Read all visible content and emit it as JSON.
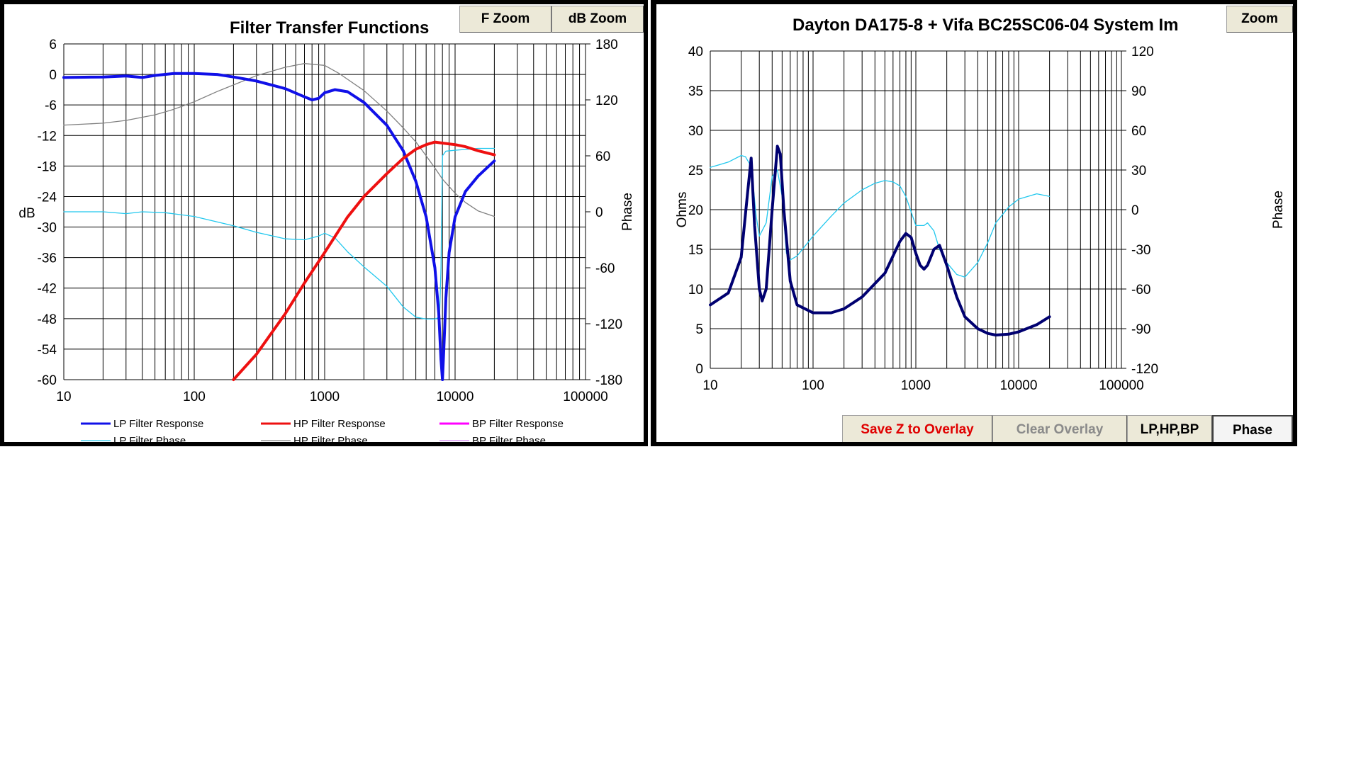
{
  "left_panel": {
    "title": "Filter Transfer Functions",
    "buttons": {
      "f_zoom": "F Zoom",
      "db_zoom": "dB Zoom"
    }
  },
  "right_panel": {
    "title": "Dayton DA175-8 + Vifa BC25SC06-04     System Im",
    "buttons": {
      "zoom": "Zoom",
      "save_overlay": "Save Z to Overlay",
      "clear_overlay": "Clear Overlay",
      "lphpbp": "LP,HP,BP",
      "phase": "Phase"
    }
  },
  "colors": {
    "lp_response": "#1010e8",
    "hp_response": "#ee1010",
    "bp_response": "#ff00ff",
    "lp_phase": "#22c8ee",
    "hp_phase": "#808080",
    "bp_phase": "#d080f0",
    "impedance": "#000070",
    "impedance_phase": "#22c8ee",
    "grid": "#000000"
  },
  "chart_data": [
    {
      "type": "line",
      "title": "Filter Transfer Functions",
      "x_scale": "log",
      "xlim": [
        10,
        100000
      ],
      "x_ticks": [
        "10",
        "100",
        "1000",
        "10000",
        "100000"
      ],
      "ylabel": "dB",
      "ylim": [
        -60,
        6
      ],
      "y_ticks": [
        "6",
        "0",
        "-6",
        "-12",
        "-18",
        "-24",
        "-30",
        "-36",
        "-42",
        "-48",
        "-54",
        "-60"
      ],
      "y2label": "Phase",
      "y2lim": [
        -180,
        180
      ],
      "y2_ticks": [
        "180",
        "120",
        "60",
        "0",
        "-60",
        "-120",
        "-180"
      ],
      "grid": true,
      "legend_placement": "bottom",
      "legend": [
        {
          "name": "LP Filter Response",
          "color_key": "lp_response",
          "width": 3
        },
        {
          "name": "HP Filter Response",
          "color_key": "hp_response",
          "width": 3
        },
        {
          "name": "BP Filter Response",
          "color_key": "bp_response",
          "width": 3
        },
        {
          "name": "LP Filter Phase",
          "color_key": "lp_phase",
          "width": 1.3
        },
        {
          "name": "HP Filter Phase",
          "color_key": "hp_phase",
          "width": 1.3
        },
        {
          "name": "BP Filter Phase",
          "color_key": "bp_phase",
          "width": 1.3
        }
      ],
      "series": [
        {
          "name": "LP Filter Response",
          "axis": "left",
          "color_key": "lp_response",
          "width": 4,
          "x": [
            10,
            20,
            30,
            40,
            50,
            70,
            100,
            150,
            200,
            300,
            500,
            700,
            800,
            900,
            1000,
            1200,
            1500,
            2000,
            3000,
            4000,
            5000,
            6000,
            7000,
            7500,
            7800,
            8000,
            8200,
            8500,
            9000,
            10000,
            12000,
            15000,
            20000
          ],
          "y": [
            -0.6,
            -0.5,
            -0.3,
            -0.6,
            -0.2,
            0.2,
            0.2,
            0,
            -0.5,
            -1.3,
            -2.8,
            -4.4,
            -5,
            -4.7,
            -3.6,
            -3,
            -3.4,
            -5.5,
            -10,
            -15,
            -21,
            -28,
            -38,
            -47,
            -56,
            -60,
            -54,
            -44,
            -35,
            -28,
            -23,
            -20,
            -17
          ]
        },
        {
          "name": "HP Filter Response",
          "axis": "left",
          "color_key": "hp_response",
          "width": 4,
          "x": [
            200,
            300,
            500,
            700,
            1000,
            1500,
            2000,
            3000,
            4000,
            5000,
            6000,
            7000,
            8000,
            10000,
            12000,
            15000,
            20000
          ],
          "y": [
            -60,
            -55,
            -47,
            -41,
            -35,
            -28,
            -24,
            -19.5,
            -16.5,
            -14.7,
            -13.8,
            -13.3,
            -13.5,
            -13.8,
            -14.2,
            -15,
            -15.8
          ]
        },
        {
          "name": "LP Filter Phase",
          "axis": "right",
          "color_key": "lp_phase",
          "width": 1.3,
          "x": [
            10,
            20,
            30,
            40,
            60,
            100,
            200,
            300,
            500,
            700,
            900,
            1000,
            1200,
            1500,
            2000,
            3000,
            4000,
            5000,
            6000,
            7000,
            7600,
            7800,
            8000,
            8500,
            10000,
            15000,
            20000
          ],
          "y": [
            0,
            0,
            -2,
            0,
            -1,
            -5,
            -15,
            -22,
            -29,
            -30,
            -26,
            -23,
            -28,
            -43,
            -59,
            -80,
            -102,
            -113,
            -115,
            -115,
            -113,
            -60,
            60,
            65,
            66,
            68,
            68
          ]
        },
        {
          "name": "HP Filter Phase",
          "axis": "right",
          "color_key": "hp_phase",
          "width": 1.3,
          "x": [
            10,
            20,
            30,
            50,
            70,
            100,
            150,
            200,
            300,
            500,
            700,
            1000,
            1300,
            1500,
            2000,
            3000,
            4000,
            5000,
            6000,
            7000,
            8000,
            10000,
            12000,
            15000,
            20000
          ],
          "y": [
            93,
            95,
            98,
            104,
            110,
            118,
            129,
            136,
            146,
            155,
            159,
            157,
            148,
            142,
            130,
            108,
            90,
            75,
            60,
            47,
            35,
            20,
            10,
            1,
            -5
          ]
        }
      ]
    },
    {
      "type": "line",
      "title": "",
      "x_scale": "log",
      "xlim": [
        10,
        100000
      ],
      "x_ticks": [
        "10",
        "100",
        "1000",
        "10000",
        "100000"
      ],
      "ylabel": "Ohms",
      "ylim": [
        0,
        40
      ],
      "y_ticks": [
        "40",
        "35",
        "30",
        "25",
        "20",
        "15",
        "10",
        "5",
        "0"
      ],
      "y2label": "Phase",
      "y2lim": [
        -120,
        120
      ],
      "y2_ticks": [
        "120",
        "90",
        "60",
        "30",
        "0",
        "-30",
        "-60",
        "-90",
        "-120"
      ],
      "grid": true,
      "series": [
        {
          "name": "",
          "axis": "left",
          "color_key": "impedance",
          "width": 4,
          "x": [
            10,
            15,
            20,
            23,
            25,
            27,
            30,
            32,
            35,
            40,
            45,
            48,
            52,
            60,
            70,
            100,
            150,
            200,
            300,
            500,
            700,
            800,
            900,
            1000,
            1100,
            1200,
            1300,
            1500,
            1700,
            2000,
            2500,
            3000,
            4000,
            5000,
            6000,
            8000,
            10000,
            15000,
            20000
          ],
          "y": [
            8,
            9.5,
            14,
            22,
            26.5,
            18,
            10,
            8.5,
            10,
            20,
            28,
            27,
            20,
            11,
            8,
            7,
            7,
            7.5,
            9,
            12,
            16,
            17,
            16.5,
            14.5,
            13,
            12.5,
            13,
            15,
            15.5,
            13,
            9,
            6.5,
            5,
            4.4,
            4.2,
            4.3,
            4.6,
            5.5,
            6.5
          ]
        },
        {
          "name": "",
          "axis": "right",
          "color_key": "impedance_phase",
          "width": 1.3,
          "x": [
            10,
            15,
            20,
            22,
            24,
            26,
            28,
            30,
            35,
            40,
            45,
            50,
            55,
            60,
            70,
            100,
            150,
            200,
            300,
            400,
            500,
            600,
            700,
            800,
            1000,
            1200,
            1300,
            1500,
            1700,
            2000,
            2500,
            3000,
            4000,
            5000,
            6000,
            8000,
            10000,
            15000,
            20000
          ],
          "y": [
            32,
            36,
            41,
            40,
            35,
            20,
            -5,
            -20,
            -10,
            25,
            30,
            10,
            -33,
            -38,
            -35,
            -20,
            -5,
            5,
            15,
            20,
            22,
            21,
            18,
            10,
            -12,
            -12,
            -10,
            -16,
            -30,
            -40,
            -49,
            -51,
            -40,
            -25,
            -10,
            2,
            8,
            12,
            10
          ]
        }
      ]
    }
  ]
}
